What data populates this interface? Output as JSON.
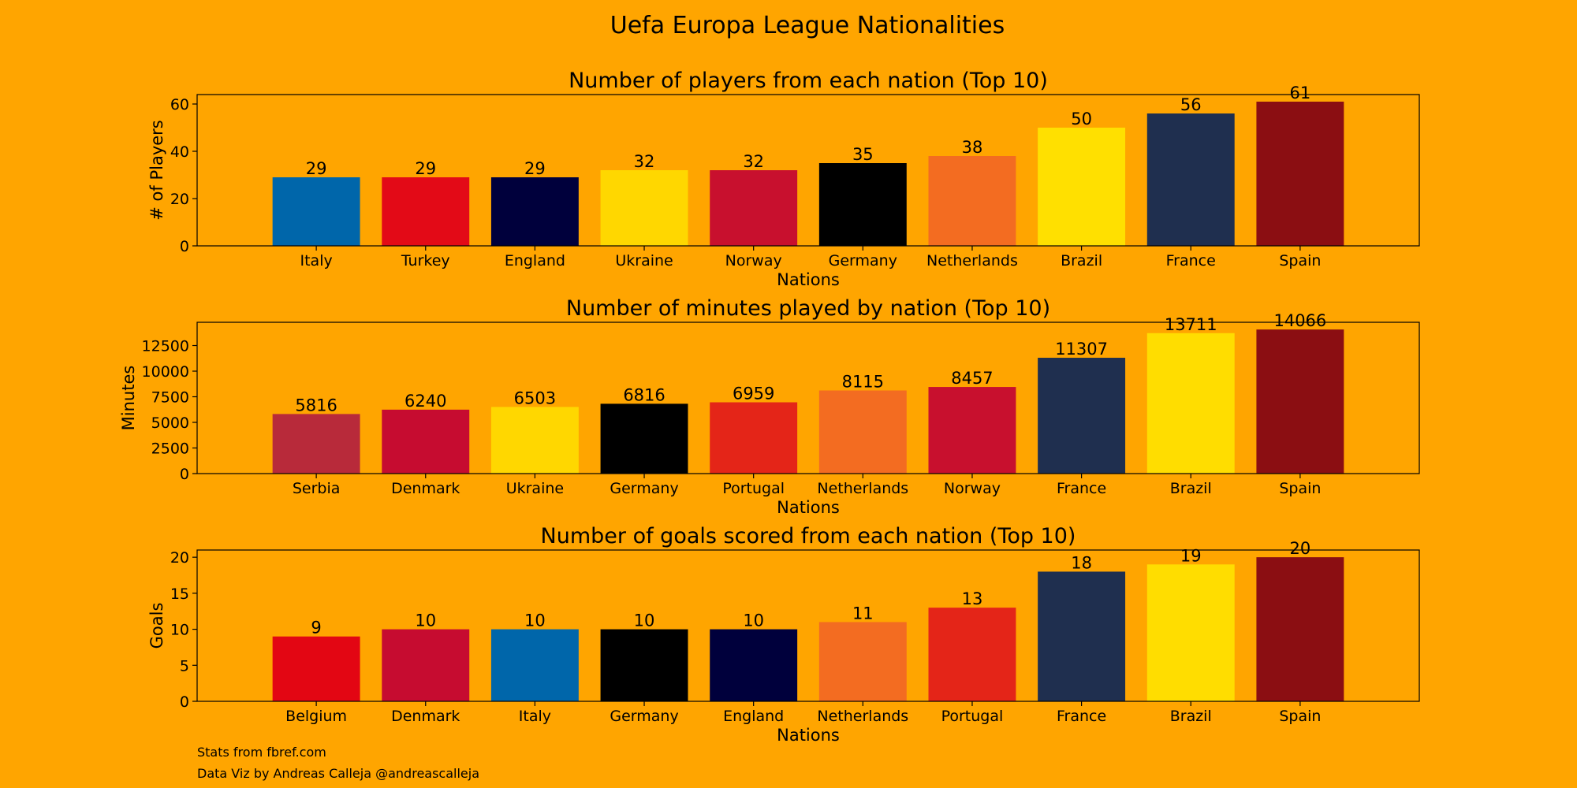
{
  "figure": {
    "title": "Uefa Europa League Nationalities",
    "credits": [
      "Stats from fbref.com",
      "Data Viz by Andreas Calleja @andreascalleja"
    ],
    "background": "#FFA500"
  },
  "chart_data": [
    {
      "type": "bar",
      "title": "Number of players from each nation (Top 10)",
      "xlabel": "Nations",
      "ylabel": "# of Players",
      "ylim": [
        0,
        64
      ],
      "yticks": [
        0,
        20,
        40,
        60
      ],
      "grid": false,
      "categories": [
        "Italy",
        "Turkey",
        "England",
        "Ukraine",
        "Norway",
        "Germany",
        "Netherlands",
        "Brazil",
        "France",
        "Spain"
      ],
      "values": [
        29,
        29,
        29,
        32,
        32,
        35,
        38,
        50,
        56,
        61
      ],
      "colors": [
        "#0066AA",
        "#E30A17",
        "#00003C",
        "#FFD700",
        "#C8102E",
        "#000000",
        "#F36C21",
        "#FFE000",
        "#1F2F4F",
        "#8B0E12"
      ]
    },
    {
      "type": "bar",
      "title": "Number of minutes played by nation (Top 10)",
      "xlabel": "Nations",
      "ylabel": "Minutes",
      "ylim": [
        0,
        14770
      ],
      "yticks": [
        0,
        2500,
        5000,
        7500,
        10000,
        12500
      ],
      "grid": false,
      "categories": [
        "Serbia",
        "Denmark",
        "Ukraine",
        "Germany",
        "Portugal",
        "Netherlands",
        "Norway",
        "France",
        "Brazil",
        "Spain"
      ],
      "values": [
        5816,
        6240,
        6503,
        6816,
        6959,
        8115,
        8457,
        11307,
        13711,
        14066
      ],
      "colors": [
        "#B82A3A",
        "#C60C30",
        "#FFD700",
        "#000000",
        "#E42518",
        "#F36C21",
        "#C8102E",
        "#1F2F4F",
        "#FFDD00",
        "#8B0E12"
      ]
    },
    {
      "type": "bar",
      "title": "Number of goals scored from each nation (Top 10)",
      "xlabel": "Nations",
      "ylabel": "Goals",
      "ylim": [
        0,
        21
      ],
      "yticks": [
        0,
        5,
        10,
        15,
        20
      ],
      "grid": false,
      "categories": [
        "Belgium",
        "Denmark",
        "Italy",
        "Germany",
        "England",
        "Netherlands",
        "Portugal",
        "France",
        "Brazil",
        "Spain"
      ],
      "values": [
        9,
        10,
        10,
        10,
        10,
        11,
        13,
        18,
        19,
        20
      ],
      "colors": [
        "#E30613",
        "#C60C30",
        "#0066AA",
        "#000000",
        "#00003C",
        "#F36C21",
        "#E42518",
        "#1F2F4F",
        "#FFDD00",
        "#8B0E12"
      ]
    }
  ]
}
